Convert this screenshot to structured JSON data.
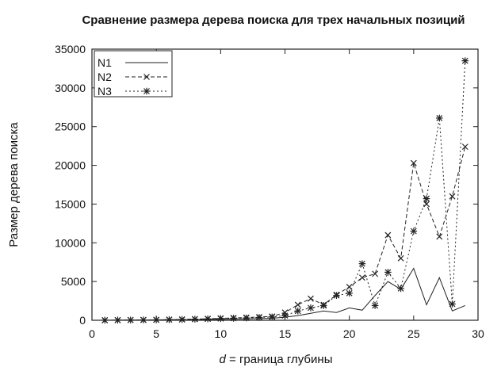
{
  "chart_data": {
    "type": "line",
    "title": "Сравнение размера дерева поиска для трех начальных позиций",
    "xlabel_var": "d",
    "xlabel_rest": " = граница глубины",
    "ylabel": "Размер дерева поиска",
    "xlim": [
      0,
      30
    ],
    "ylim": [
      0,
      35000
    ],
    "xticks": [
      0,
      5,
      10,
      15,
      20,
      25,
      30
    ],
    "yticks": [
      0,
      5000,
      10000,
      15000,
      20000,
      25000,
      30000,
      35000
    ],
    "xtick_labels": [
      "0",
      "5",
      "10",
      "15",
      "20",
      "25",
      "30"
    ],
    "ytick_labels": [
      "0",
      "5000",
      "10000",
      "15000",
      "20000",
      "25000",
      "30000",
      "35000"
    ],
    "grid": false,
    "legend_position": "top-left",
    "x": [
      1,
      2,
      3,
      4,
      5,
      6,
      7,
      8,
      9,
      10,
      11,
      12,
      13,
      14,
      15,
      16,
      17,
      18,
      19,
      20,
      21,
      22,
      23,
      24,
      25,
      26,
      27,
      28,
      29
    ],
    "series": [
      {
        "name": "N1",
        "marker": "none",
        "dash": "solid",
        "values": [
          5,
          10,
          20,
          30,
          40,
          50,
          60,
          80,
          100,
          120,
          150,
          180,
          220,
          260,
          400,
          600,
          900,
          1200,
          1000,
          1600,
          1300,
          3200,
          5000,
          4000,
          6700,
          2000,
          5500,
          1200,
          1900
        ]
      },
      {
        "name": "N2",
        "marker": "x",
        "dash": "dashed",
        "values": [
          10,
          20,
          30,
          40,
          60,
          80,
          110,
          150,
          200,
          250,
          300,
          350,
          420,
          500,
          1000,
          2000,
          2800,
          2000,
          3300,
          4300,
          5500,
          6000,
          11000,
          8000,
          20300,
          15000,
          10800,
          16000,
          22400
        ]
      },
      {
        "name": "N3",
        "marker": "star",
        "dash": "dotted",
        "values": [
          10,
          20,
          30,
          40,
          60,
          80,
          100,
          140,
          180,
          220,
          260,
          300,
          360,
          420,
          600,
          1200,
          1600,
          1900,
          3200,
          3500,
          7300,
          1900,
          6200,
          4100,
          11500,
          15700,
          26100,
          2100,
          33500
        ]
      }
    ]
  }
}
